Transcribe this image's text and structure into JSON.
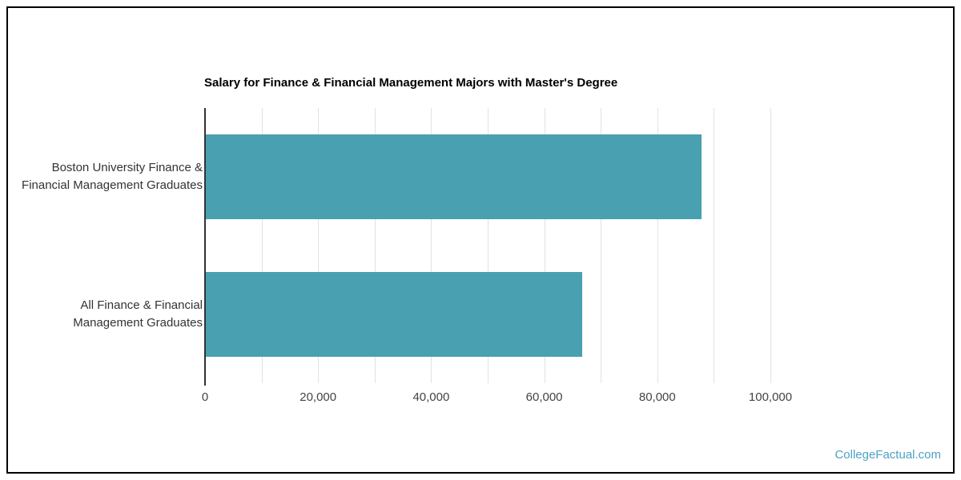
{
  "frame": {
    "border_color": "#000000",
    "background": "#ffffff"
  },
  "chart_data": {
    "type": "bar",
    "orientation": "horizontal",
    "title": "Salary for Finance & Financial Management Majors with Master's Degree",
    "categories": [
      {
        "lines": [
          "Boston University Finance &",
          "Financial Management Graduates"
        ]
      },
      {
        "lines": [
          "All Finance & Financial",
          "Management Graduates"
        ]
      }
    ],
    "values": [
      87800,
      66700
    ],
    "xlim": [
      0,
      100000
    ],
    "x_major_ticks": [
      {
        "value": 0,
        "label": "0"
      },
      {
        "value": 20000,
        "label": "20,000"
      },
      {
        "value": 40000,
        "label": "40,000"
      },
      {
        "value": 60000,
        "label": "60,000"
      },
      {
        "value": 80000,
        "label": "80,000"
      },
      {
        "value": 100000,
        "label": "100,000"
      }
    ],
    "x_minor_tick_step": 10000,
    "grid": true,
    "legend": "none",
    "bar_color": "#49a0b0",
    "gridline_color": "#e2e2e2",
    "axis_line_color": "#333333",
    "tick_label_color": "#444444",
    "category_label_color": "#333333",
    "title_color": "#000000"
  },
  "watermark": {
    "label": "CollegeFactual.com",
    "color": "#4da1c4"
  }
}
